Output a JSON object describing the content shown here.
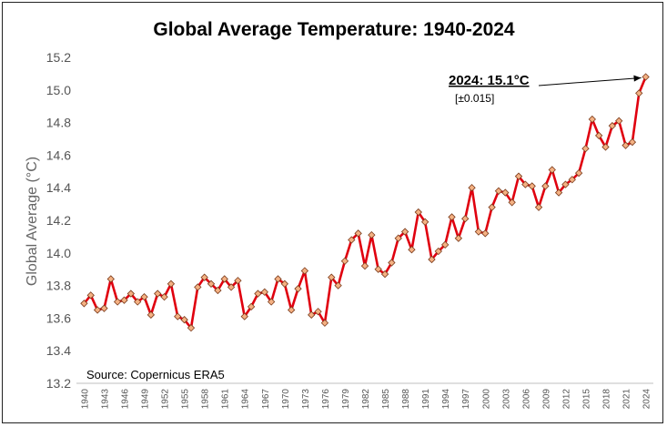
{
  "chart_data": {
    "type": "line",
    "title": "Global Average Temperature: 1940-2024",
    "xlabel": "",
    "ylabel": "Global Average (°C)",
    "ylim": [
      13.2,
      15.2
    ],
    "ytick_labels": [
      "13.2",
      "13.4",
      "13.6",
      "13.8",
      "14.0",
      "14.2",
      "14.4",
      "14.6",
      "14.8",
      "15.0",
      "15.2"
    ],
    "ytick_values": [
      13.2,
      13.4,
      13.6,
      13.8,
      14.0,
      14.2,
      14.4,
      14.6,
      14.8,
      15.0,
      15.2
    ],
    "xtick_labels": [
      "1940",
      "1943",
      "1946",
      "1949",
      "1952",
      "1955",
      "1958",
      "1961",
      "1964",
      "1967",
      "1970",
      "1973",
      "1976",
      "1979",
      "1982",
      "1985",
      "1988",
      "1991",
      "1994",
      "1997",
      "2000",
      "2003",
      "2006",
      "2009",
      "2012",
      "2015",
      "2018",
      "2021",
      "2024"
    ],
    "grid": false,
    "line_color": "#e0000f",
    "marker_fill": "#f4b183",
    "marker_stroke": "#7a3a1a",
    "series": [
      {
        "name": "Global Average Temperature",
        "x": [
          1940,
          1941,
          1942,
          1943,
          1944,
          1945,
          1946,
          1947,
          1948,
          1949,
          1950,
          1951,
          1952,
          1953,
          1954,
          1955,
          1956,
          1957,
          1958,
          1959,
          1960,
          1961,
          1962,
          1963,
          1964,
          1965,
          1966,
          1967,
          1968,
          1969,
          1970,
          1971,
          1972,
          1973,
          1974,
          1975,
          1976,
          1977,
          1978,
          1979,
          1980,
          1981,
          1982,
          1983,
          1984,
          1985,
          1986,
          1987,
          1988,
          1989,
          1990,
          1991,
          1992,
          1993,
          1994,
          1995,
          1996,
          1997,
          1998,
          1999,
          2000,
          2001,
          2002,
          2003,
          2004,
          2005,
          2006,
          2007,
          2008,
          2009,
          2010,
          2011,
          2012,
          2013,
          2014,
          2015,
          2016,
          2017,
          2018,
          2019,
          2020,
          2021,
          2022,
          2023,
          2024
        ],
        "values": [
          13.69,
          13.74,
          13.65,
          13.66,
          13.84,
          13.7,
          13.71,
          13.75,
          13.7,
          13.73,
          13.62,
          13.75,
          13.73,
          13.81,
          13.61,
          13.59,
          13.54,
          13.79,
          13.85,
          13.81,
          13.77,
          13.84,
          13.79,
          13.83,
          13.61,
          13.67,
          13.75,
          13.76,
          13.7,
          13.84,
          13.81,
          13.65,
          13.78,
          13.89,
          13.62,
          13.64,
          13.57,
          13.85,
          13.8,
          13.95,
          14.08,
          14.12,
          13.92,
          14.11,
          13.9,
          13.87,
          13.94,
          14.09,
          14.13,
          14.02,
          14.25,
          14.19,
          13.96,
          14.01,
          14.05,
          14.22,
          14.09,
          14.21,
          14.4,
          14.13,
          14.12,
          14.28,
          14.38,
          14.37,
          14.31,
          14.47,
          14.42,
          14.41,
          14.28,
          14.41,
          14.51,
          14.37,
          14.42,
          14.45,
          14.49,
          14.64,
          14.82,
          14.72,
          14.65,
          14.78,
          14.81,
          14.66,
          14.68,
          14.98,
          15.08
        ]
      }
    ],
    "annotation": {
      "label": "2024: 15.1°C",
      "sublabel": "[±0.015]",
      "target_year": 2024,
      "target_value": 15.08
    },
    "source": "Source: Copernicus ERA5"
  }
}
